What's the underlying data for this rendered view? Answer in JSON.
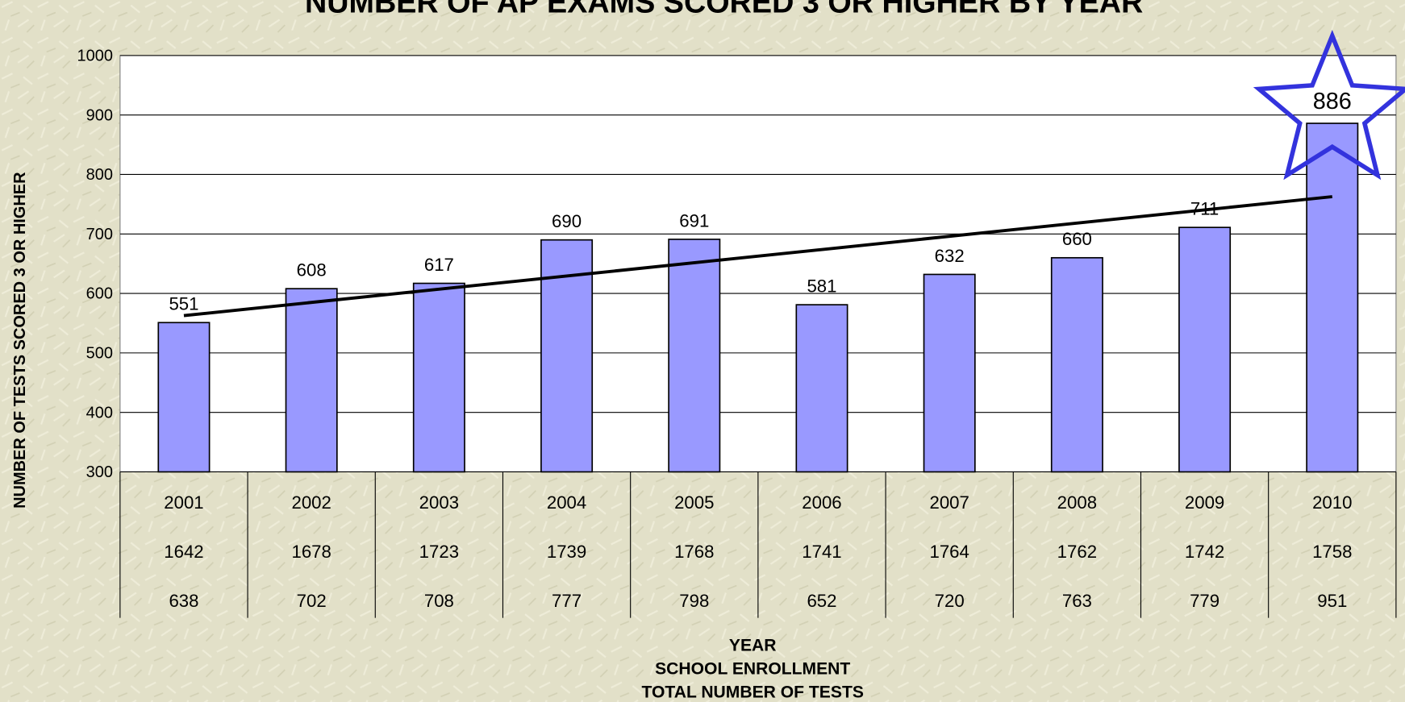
{
  "chart_data": {
    "type": "bar",
    "title": "NUMBER OF AP EXAMS SCORED 3 OR HIGHER BY YEAR",
    "y_label": "NUMBER OF TESTS SCORED 3 OR HIGHER",
    "x_label": [
      "YEAR",
      "SCHOOL ENROLLMENT",
      "TOTAL NUMBER OF TESTS"
    ],
    "categories": [
      "2001",
      "2002",
      "2003",
      "2004",
      "2005",
      "2006",
      "2007",
      "2008",
      "2009",
      "2010"
    ],
    "values": [
      551,
      608,
      617,
      690,
      691,
      581,
      632,
      660,
      711,
      886
    ],
    "color": "#9999ff",
    "table_rows": [
      {
        "name": "SCHOOL ENROLLMENT",
        "values": [
          1642,
          1678,
          1723,
          1739,
          1768,
          1741,
          1764,
          1762,
          1742,
          1758
        ]
      },
      {
        "name": "TOTAL NUMBER OF TESTS",
        "values": [
          638,
          702,
          708,
          777,
          798,
          652,
          720,
          763,
          779,
          951
        ]
      }
    ],
    "ylim": [
      300,
      1000
    ],
    "yticks": [
      300,
      400,
      500,
      600,
      700,
      800,
      900,
      1000
    ],
    "grid": true,
    "trendline": "linear"
  }
}
